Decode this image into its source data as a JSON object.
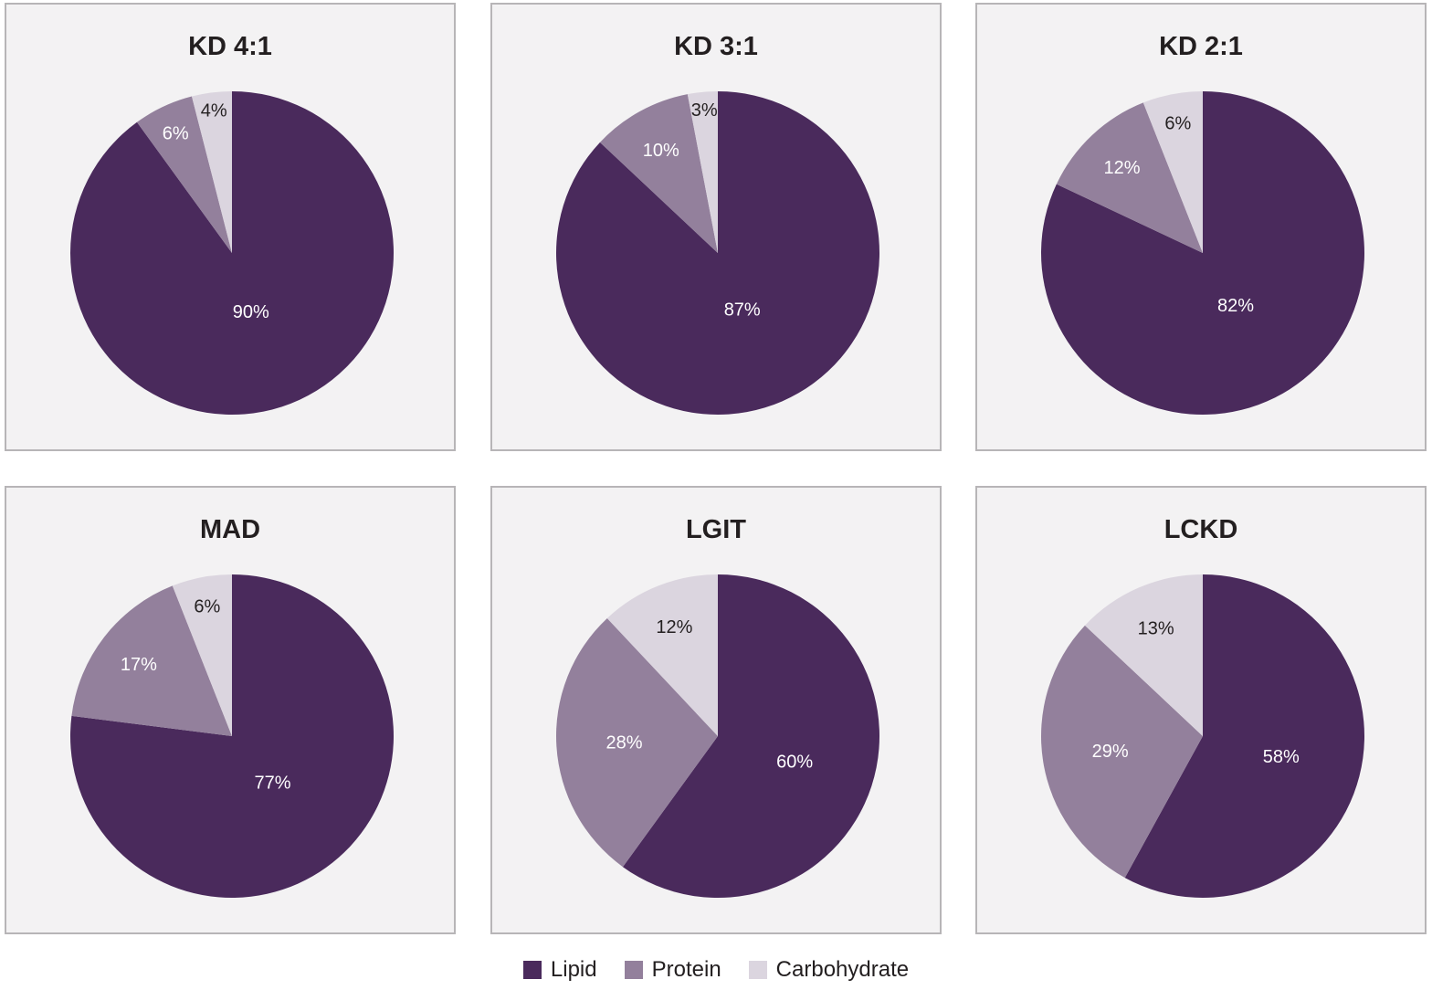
{
  "colors": {
    "lipid": "#4a2a5c",
    "protein": "#93809c",
    "carbohydrate": "#dbd5df",
    "label_dark": "#231f20",
    "label_light": "#ffffff"
  },
  "legend": [
    {
      "name": "Lipid",
      "color": "#4a2a5c"
    },
    {
      "name": "Protein",
      "color": "#93809c"
    },
    {
      "name": "Carbohydrate",
      "color": "#dbd5df"
    }
  ],
  "chart_data": [
    {
      "type": "pie",
      "title": "KD 4:1",
      "labels": [
        "Lipid",
        "Protein",
        "Carbohydrate"
      ],
      "values": [
        90,
        6,
        4
      ],
      "data_labels": [
        "90%",
        "6%",
        "4%"
      ]
    },
    {
      "type": "pie",
      "title": "KD 3:1",
      "labels": [
        "Lipid",
        "Protein",
        "Carbohydrate"
      ],
      "values": [
        87,
        10,
        3
      ],
      "data_labels": [
        "87%",
        "10%",
        "3%"
      ]
    },
    {
      "type": "pie",
      "title": "KD 2:1",
      "labels": [
        "Lipid",
        "Protein",
        "Carbohydrate"
      ],
      "values": [
        82,
        12,
        6
      ],
      "data_labels": [
        "82%",
        "12%",
        "6%"
      ]
    },
    {
      "type": "pie",
      "title": "MAD",
      "labels": [
        "Lipid",
        "Protein",
        "Carbohydrate"
      ],
      "values": [
        77,
        17,
        6
      ],
      "data_labels": [
        "77%",
        "17%",
        "6%"
      ]
    },
    {
      "type": "pie",
      "title": "LGIT",
      "labels": [
        "Lipid",
        "Protein",
        "Carbohydrate"
      ],
      "values": [
        60,
        28,
        12
      ],
      "data_labels": [
        "60%",
        "28%",
        "12%"
      ]
    },
    {
      "type": "pie",
      "title": "LCKD",
      "labels": [
        "Lipid",
        "Protein",
        "Carbohydrate"
      ],
      "values": [
        58,
        29,
        13
      ],
      "data_labels": [
        "58%",
        "29%",
        "13%"
      ]
    }
  ]
}
